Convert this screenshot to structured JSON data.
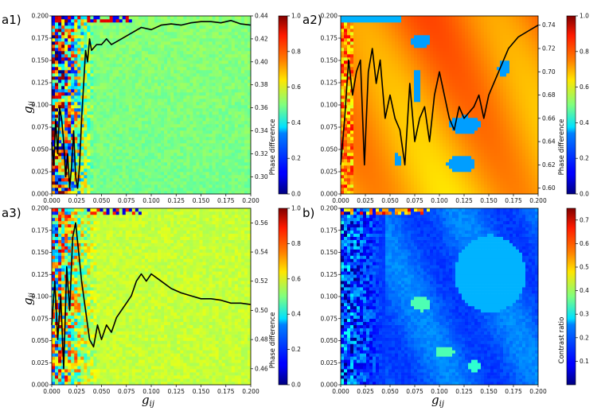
{
  "chart_data": [
    {
      "id": "a1",
      "type": "heatmap",
      "panel_label": "a1)",
      "xlabel_main": "",
      "xlabel_sub": "",
      "ylabel_main": "g",
      "ylabel_sub": "ii",
      "ylabel_color": "#3aa0d8",
      "x_ticks": [
        "0.000",
        "0.025",
        "0.050",
        "0.075",
        "0.100",
        "0.125",
        "0.150",
        "0.175",
        "0.200"
      ],
      "y_ticks": [
        "0.000",
        "0.025",
        "0.050",
        "0.075",
        "0.100",
        "0.125",
        "0.150",
        "0.175",
        "0.200"
      ],
      "xlim": [
        0,
        0.2
      ],
      "ylim": [
        0,
        0.2
      ],
      "background_level": 0.5,
      "right_axis_ticks": [
        "0.30",
        "0.32",
        "0.34",
        "0.36",
        "0.38",
        "0.40",
        "0.42",
        "0.44"
      ],
      "right_axis_range": [
        0.285,
        0.44
      ],
      "colorbar_ticks": [
        "0.0",
        "0.2",
        "0.4",
        "0.6",
        "0.8",
        "1.0"
      ],
      "colorbar_label": "Phase  difference",
      "colorbar_range": [
        0,
        1
      ],
      "line_series": {
        "x": [
          0.0,
          0.002,
          0.004,
          0.006,
          0.008,
          0.01,
          0.012,
          0.014,
          0.016,
          0.018,
          0.02,
          0.022,
          0.024,
          0.026,
          0.028,
          0.03,
          0.032,
          0.034,
          0.036,
          0.038,
          0.04,
          0.045,
          0.05,
          0.055,
          0.06,
          0.07,
          0.08,
          0.09,
          0.1,
          0.11,
          0.12,
          0.13,
          0.14,
          0.15,
          0.16,
          0.17,
          0.18,
          0.19,
          0.2
        ],
        "y": [
          0.33,
          0.31,
          0.35,
          0.32,
          0.36,
          0.35,
          0.33,
          0.3,
          0.32,
          0.29,
          0.31,
          0.34,
          0.3,
          0.29,
          0.31,
          0.35,
          0.38,
          0.41,
          0.4,
          0.42,
          0.41,
          0.415,
          0.415,
          0.42,
          0.415,
          0.42,
          0.425,
          0.43,
          0.428,
          0.432,
          0.433,
          0.432,
          0.434,
          0.435,
          0.435,
          0.434,
          0.436,
          0.433,
          0.432
        ]
      }
    },
    {
      "id": "a2",
      "type": "heatmap",
      "panel_label": "a2)",
      "xlabel_main": "",
      "xlabel_sub": "",
      "ylabel_main": "",
      "ylabel_sub": "",
      "x_ticks": [
        "0.000",
        "0.025",
        "0.050",
        "0.075",
        "0.100",
        "0.125",
        "0.150",
        "0.175",
        "0.200"
      ],
      "y_ticks": [
        "0.000",
        "0.025",
        "0.050",
        "0.075",
        "0.100",
        "0.125",
        "0.150",
        "0.175",
        "0.200"
      ],
      "xlim": [
        0,
        0.2
      ],
      "ylim": [
        0,
        0.2
      ],
      "background_level": 0.73,
      "right_axis_ticks": [
        "0.60",
        "0.62",
        "0.64",
        "0.66",
        "0.68",
        "0.70",
        "0.72",
        "0.74"
      ],
      "right_axis_range": [
        0.595,
        0.748
      ],
      "colorbar_ticks": [
        "0.0",
        "0.2",
        "0.4",
        "0.6",
        "0.8",
        "1.0"
      ],
      "colorbar_label": "Phase  difference",
      "colorbar_range": [
        0,
        1
      ],
      "line_series": {
        "x": [
          0.0,
          0.004,
          0.008,
          0.012,
          0.016,
          0.02,
          0.024,
          0.028,
          0.032,
          0.036,
          0.04,
          0.045,
          0.05,
          0.055,
          0.06,
          0.065,
          0.07,
          0.075,
          0.08,
          0.085,
          0.09,
          0.095,
          0.1,
          0.105,
          0.11,
          0.115,
          0.12,
          0.125,
          0.13,
          0.135,
          0.14,
          0.145,
          0.15,
          0.155,
          0.16,
          0.17,
          0.18,
          0.19,
          0.2
        ],
        "y": [
          0.62,
          0.66,
          0.71,
          0.68,
          0.7,
          0.71,
          0.62,
          0.7,
          0.72,
          0.69,
          0.71,
          0.66,
          0.68,
          0.66,
          0.65,
          0.62,
          0.69,
          0.64,
          0.66,
          0.67,
          0.64,
          0.68,
          0.7,
          0.68,
          0.66,
          0.65,
          0.67,
          0.66,
          0.665,
          0.67,
          0.68,
          0.66,
          0.68,
          0.69,
          0.7,
          0.72,
          0.73,
          0.735,
          0.74
        ]
      }
    },
    {
      "id": "a3",
      "type": "heatmap",
      "panel_label": "a3)",
      "xlabel_main": "g",
      "xlabel_sub": "ij",
      "ylabel_main": "g",
      "ylabel_sub": "ii",
      "ylabel_color": "#000000",
      "x_ticks": [
        "0.000",
        "0.025",
        "0.050",
        "0.075",
        "0.100",
        "0.125",
        "0.150",
        "0.175",
        "0.200"
      ],
      "y_ticks": [
        "0.000",
        "0.025",
        "0.050",
        "0.075",
        "0.100",
        "0.125",
        "0.150",
        "0.175",
        "0.200"
      ],
      "xlim": [
        0,
        0.2
      ],
      "ylim": [
        0,
        0.2
      ],
      "background_level": 0.57,
      "right_axis_ticks": [
        "0.46",
        "0.48",
        "0.50",
        "0.52",
        "0.54",
        "0.56"
      ],
      "right_axis_range": [
        0.449,
        0.57
      ],
      "colorbar_ticks": [
        "0.0",
        "0.2",
        "0.4",
        "0.6",
        "0.8",
        "1.0"
      ],
      "colorbar_label": "Phase  difference",
      "colorbar_range": [
        0,
        1
      ],
      "line_series": {
        "x": [
          0.0,
          0.003,
          0.006,
          0.009,
          0.012,
          0.015,
          0.018,
          0.021,
          0.024,
          0.027,
          0.03,
          0.034,
          0.038,
          0.042,
          0.046,
          0.05,
          0.055,
          0.06,
          0.065,
          0.07,
          0.075,
          0.08,
          0.085,
          0.09,
          0.095,
          0.1,
          0.11,
          0.12,
          0.13,
          0.14,
          0.15,
          0.16,
          0.17,
          0.18,
          0.19,
          0.2
        ],
        "y": [
          0.49,
          0.52,
          0.48,
          0.51,
          0.46,
          0.53,
          0.5,
          0.55,
          0.56,
          0.54,
          0.52,
          0.5,
          0.48,
          0.475,
          0.49,
          0.48,
          0.49,
          0.485,
          0.495,
          0.5,
          0.505,
          0.51,
          0.52,
          0.525,
          0.52,
          0.525,
          0.52,
          0.515,
          0.512,
          0.51,
          0.508,
          0.508,
          0.507,
          0.505,
          0.505,
          0.504
        ]
      }
    },
    {
      "id": "b",
      "type": "heatmap",
      "panel_label": "b)",
      "xlabel_main": "g",
      "xlabel_sub": "ij",
      "ylabel_main": "",
      "ylabel_sub": "",
      "x_ticks": [
        "0.000",
        "0.025",
        "0.050",
        "0.075",
        "0.100",
        "0.125",
        "0.150",
        "0.175",
        "0.200"
      ],
      "y_ticks": [
        "0.000",
        "0.025",
        "0.050",
        "0.075",
        "0.100",
        "0.125",
        "0.150",
        "0.175",
        "0.200"
      ],
      "xlim": [
        0,
        0.2
      ],
      "ylim": [
        0,
        0.2
      ],
      "background_level": 0.22,
      "colorbar_ticks": [
        "0.1",
        "0.2",
        "0.3",
        "0.4",
        "0.5",
        "0.6",
        "0.7"
      ],
      "colorbar_label": "Contrast  ratio",
      "colorbar_range": [
        0.0,
        0.75
      ]
    }
  ]
}
